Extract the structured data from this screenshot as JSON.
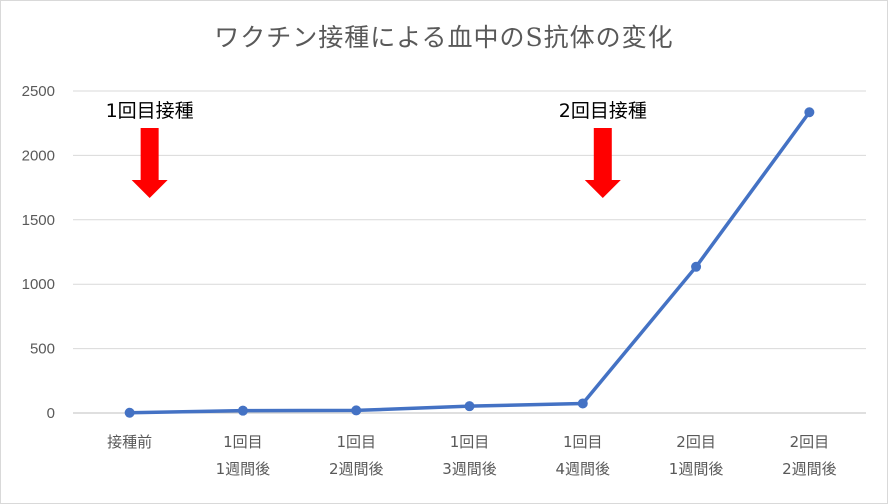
{
  "chart_data": {
    "type": "line",
    "title": "ワクチン接種による血中のS抗体の変化",
    "categories": [
      [
        "接種前"
      ],
      [
        "1回目",
        "1週間後"
      ],
      [
        "1回目",
        "2週間後"
      ],
      [
        "1回目",
        "3週間後"
      ],
      [
        "1回目",
        "4週間後"
      ],
      [
        "2回目",
        "1週間後"
      ],
      [
        "2回目",
        "2週間後"
      ]
    ],
    "values": [
      2,
      18,
      20,
      53,
      74,
      1135,
      2335
    ],
    "ylim": [
      0,
      2500
    ],
    "yticks": [
      0,
      500,
      1000,
      1500,
      2000,
      2500
    ],
    "grid": true,
    "line_color": "#4472c4",
    "annotations": [
      {
        "text": "1回目接種",
        "category_index": 0,
        "arrow_color": "#ff0000"
      },
      {
        "text": "2回目接種",
        "category_index": 4,
        "arrow_color": "#ff0000"
      }
    ]
  }
}
